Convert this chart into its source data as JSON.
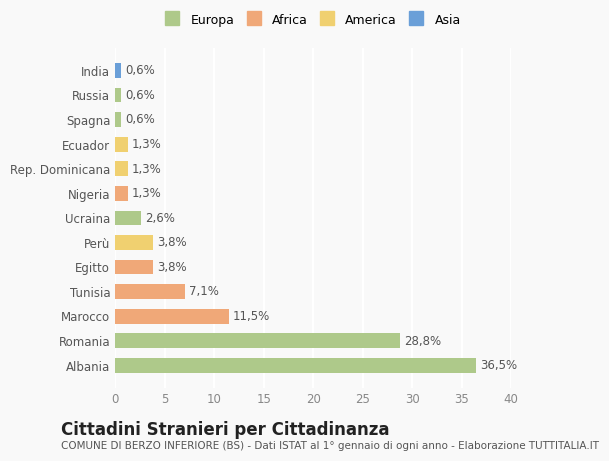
{
  "categories": [
    "Albania",
    "Romania",
    "Marocco",
    "Tunisia",
    "Egitto",
    "Perù",
    "Ucraina",
    "Nigeria",
    "Rep. Dominicana",
    "Ecuador",
    "Spagna",
    "Russia",
    "India"
  ],
  "values": [
    36.5,
    28.8,
    11.5,
    7.1,
    3.8,
    3.8,
    2.6,
    1.3,
    1.3,
    1.3,
    0.6,
    0.6,
    0.6
  ],
  "labels": [
    "36,5%",
    "28,8%",
    "11,5%",
    "7,1%",
    "3,8%",
    "3,8%",
    "2,6%",
    "1,3%",
    "1,3%",
    "1,3%",
    "0,6%",
    "0,6%",
    "0,6%"
  ],
  "continents": [
    "Europa",
    "Europa",
    "Africa",
    "Africa",
    "Africa",
    "America",
    "Europa",
    "Africa",
    "America",
    "America",
    "Europa",
    "Europa",
    "Asia"
  ],
  "colors": {
    "Europa": "#aec98a",
    "Africa": "#f0a878",
    "America": "#f0d070",
    "Asia": "#6a9fd8"
  },
  "legend_colors": {
    "Europa": "#aec98a",
    "Africa": "#f0a878",
    "America": "#f0d070",
    "Asia": "#6a9fd8"
  },
  "xlim": [
    0,
    40
  ],
  "xticks": [
    0,
    5,
    10,
    15,
    20,
    25,
    30,
    35,
    40
  ],
  "title": "Cittadini Stranieri per Cittadinanza",
  "subtitle": "COMUNE DI BERZO INFERIORE (BS) - Dati ISTAT al 1° gennaio di ogni anno - Elaborazione TUTTITALIA.IT",
  "background_color": "#f9f9f9",
  "bar_height": 0.6,
  "grid_color": "#ffffff",
  "label_fontsize": 8.5,
  "tick_fontsize": 8.5,
  "title_fontsize": 12,
  "subtitle_fontsize": 7.5
}
